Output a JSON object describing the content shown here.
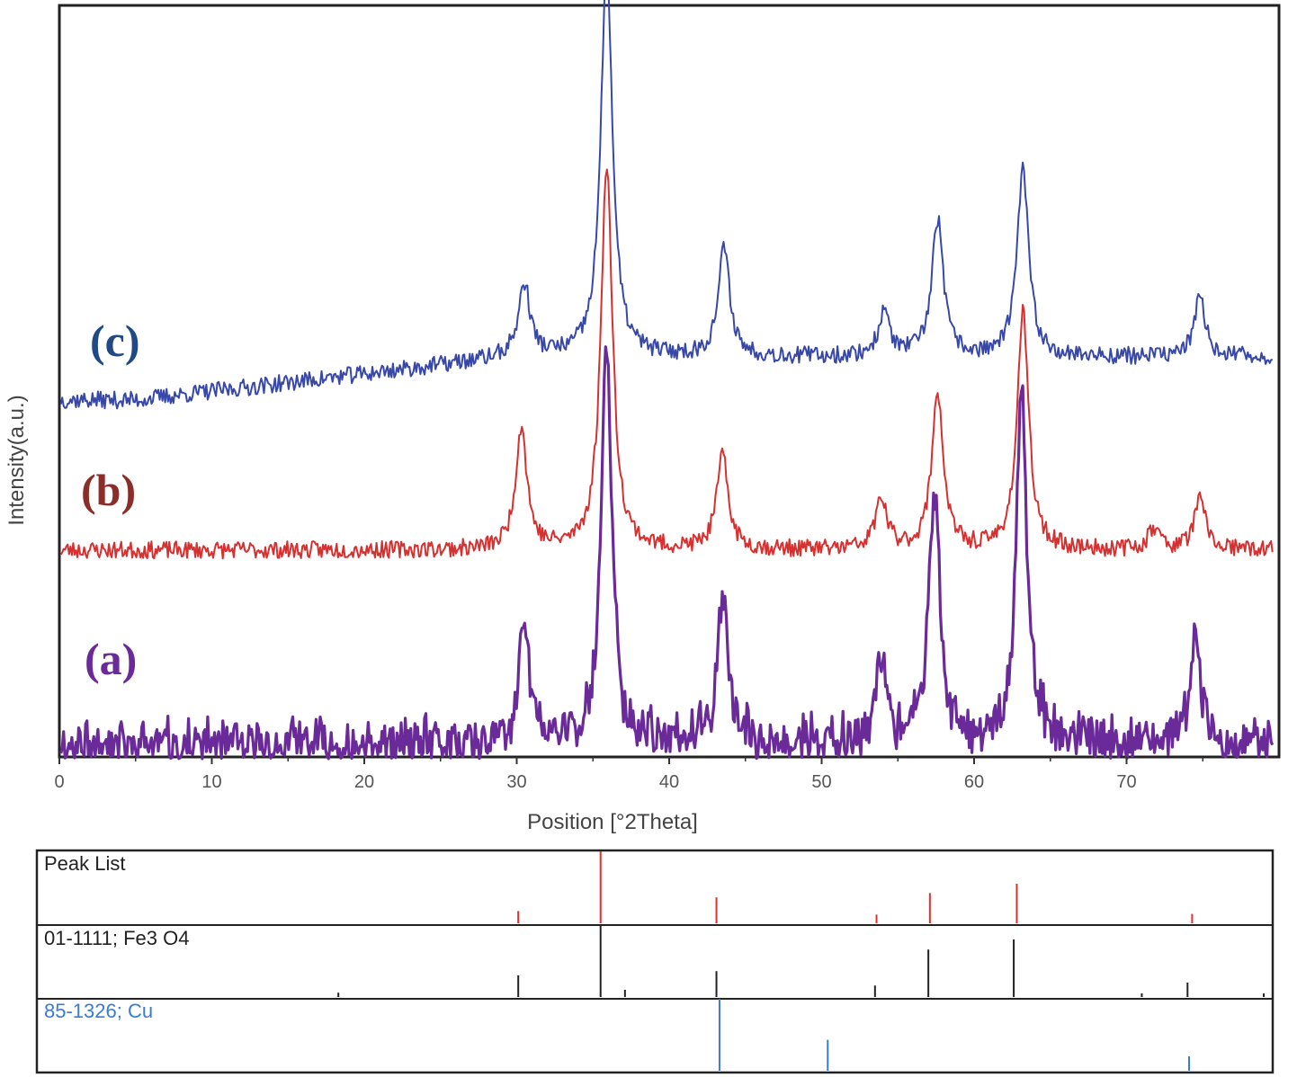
{
  "chart_data": [
    {
      "type": "line",
      "title": "",
      "xlabel": "Position [°2Theta]",
      "ylabel": "Intensity(a.u.)",
      "xlim": [
        0,
        80
      ],
      "xticks": [
        "0",
        "10",
        "20",
        "30",
        "40",
        "50",
        "60",
        "70"
      ],
      "grid": false,
      "y_scale": "arbitrary units, stacked series",
      "series": [
        {
          "name": "(a)",
          "color": "#6a2a9a",
          "peaks": [
            {
              "x": 30.5,
              "y": 0.17
            },
            {
              "x": 35.9,
              "y": 0.55
            },
            {
              "x": 43.5,
              "y": 0.21
            },
            {
              "x": 53.9,
              "y": 0.12
            },
            {
              "x": 57.4,
              "y": 0.36
            },
            {
              "x": 63.1,
              "y": 0.49
            },
            {
              "x": 74.5,
              "y": 0.15
            }
          ]
        },
        {
          "name": "(b)",
          "color": "#d63030",
          "peaks": [
            {
              "x": 30.3,
              "y": 0.17
            },
            {
              "x": 35.9,
              "y": 0.54
            },
            {
              "x": 43.5,
              "y": 0.13
            },
            {
              "x": 53.9,
              "y": 0.07
            },
            {
              "x": 57.6,
              "y": 0.22
            },
            {
              "x": 63.2,
              "y": 0.33
            },
            {
              "x": 71.8,
              "y": 0.03
            },
            {
              "x": 74.8,
              "y": 0.07
            }
          ]
        },
        {
          "name": "(c)",
          "color": "#3848a8",
          "peaks": [
            {
              "x": 30.5,
              "y": 0.1
            },
            {
              "x": 35.9,
              "y": 0.55
            },
            {
              "x": 43.6,
              "y": 0.15
            },
            {
              "x": 54.1,
              "y": 0.06
            },
            {
              "x": 57.6,
              "y": 0.19
            },
            {
              "x": 63.2,
              "y": 0.26
            },
            {
              "x": 74.8,
              "y": 0.08
            }
          ]
        }
      ]
    },
    {
      "type": "bar",
      "panels": [
        {
          "name": "Peak List",
          "color": "#e03030",
          "lines": [
            {
              "x": 30.1,
              "y": 0.17
            },
            {
              "x": 35.5,
              "y": 1.0
            },
            {
              "x": 43.1,
              "y": 0.36
            },
            {
              "x": 53.6,
              "y": 0.12
            },
            {
              "x": 57.1,
              "y": 0.42
            },
            {
              "x": 62.8,
              "y": 0.55
            },
            {
              "x": 74.3,
              "y": 0.13
            }
          ]
        },
        {
          "name": "01-1111; Fe3 O4",
          "color": "#222222",
          "lines": [
            {
              "x": 18.3,
              "y": 0.06
            },
            {
              "x": 30.1,
              "y": 0.3
            },
            {
              "x": 35.5,
              "y": 1.0
            },
            {
              "x": 37.1,
              "y": 0.1
            },
            {
              "x": 43.1,
              "y": 0.36
            },
            {
              "x": 53.5,
              "y": 0.16
            },
            {
              "x": 57.0,
              "y": 0.66
            },
            {
              "x": 62.6,
              "y": 0.8
            },
            {
              "x": 71.0,
              "y": 0.05
            },
            {
              "x": 74.0,
              "y": 0.2
            },
            {
              "x": 79.0,
              "y": 0.05
            }
          ]
        },
        {
          "name": "85-1326; Cu",
          "color": "#3a7bd5",
          "lines": [
            {
              "x": 43.3,
              "y": 1.0
            },
            {
              "x": 50.4,
              "y": 0.43
            },
            {
              "x": 74.1,
              "y": 0.2
            }
          ]
        }
      ]
    }
  ]
}
